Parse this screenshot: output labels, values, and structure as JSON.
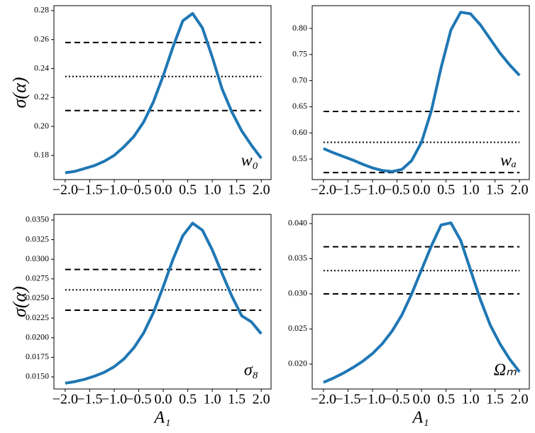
{
  "chart_data": [
    {
      "type": "line",
      "annotation": "w₀",
      "ylabel": "σ(α)",
      "color": "#1f77b4",
      "x": [
        -2.0,
        -1.8,
        -1.6,
        -1.4,
        -1.2,
        -1.0,
        -0.8,
        -0.6,
        -0.4,
        -0.2,
        0.0,
        0.2,
        0.4,
        0.6,
        0.8,
        1.0,
        1.2,
        1.4,
        1.6,
        1.8,
        2.0
      ],
      "values": [
        0.168,
        0.169,
        0.171,
        0.173,
        0.176,
        0.18,
        0.186,
        0.193,
        0.203,
        0.217,
        0.235,
        0.255,
        0.273,
        0.278,
        0.268,
        0.248,
        0.226,
        0.21,
        0.197,
        0.187,
        0.178
      ],
      "hlines": [
        {
          "value": 0.258,
          "style": "dashed"
        },
        {
          "value": 0.2345,
          "style": "dotted"
        },
        {
          "value": 0.211,
          "style": "dashed"
        }
      ],
      "xlim": [
        -2.23,
        2.2
      ],
      "ylim": [
        0.1633,
        0.2834
      ],
      "xticks": [
        {
          "value": -2,
          "label": "−2.0"
        },
        {
          "value": -1.5,
          "label": "−1.5"
        },
        {
          "value": -1,
          "label": "−1.0"
        },
        {
          "value": -0.5,
          "label": "−0.5"
        },
        {
          "value": 0,
          "label": "0.0"
        },
        0.5,
        {
          "value": 1,
          "label": "1.0"
        },
        1.5,
        {
          "value": 2,
          "label": "2.0"
        }
      ],
      "yticks": [
        0.18,
        {
          "value": 0.2,
          "label": "0.20"
        },
        0.22,
        0.24,
        0.26,
        0.28
      ]
    },
    {
      "type": "line",
      "annotation": "wₐ",
      "color": "#1f77b4",
      "x": [
        -2.0,
        -1.8,
        -1.6,
        -1.4,
        -1.2,
        -1.0,
        -0.8,
        -0.6,
        -0.4,
        -0.2,
        0.0,
        0.2,
        0.4,
        0.6,
        0.8,
        1.0,
        1.2,
        1.4,
        1.6,
        1.8,
        2.0
      ],
      "values": [
        0.57,
        0.562,
        0.555,
        0.548,
        0.54,
        0.533,
        0.528,
        0.526,
        0.53,
        0.547,
        0.582,
        0.642,
        0.725,
        0.797,
        0.831,
        0.828,
        0.807,
        0.78,
        0.753,
        0.73,
        0.71
      ],
      "hlines": [
        {
          "value": 0.641,
          "style": "dashed"
        },
        {
          "value": 0.582,
          "style": "dotted"
        },
        {
          "value": 0.524,
          "style": "dashed"
        }
      ],
      "xlim": [
        -2.23,
        2.2
      ],
      "ylim": [
        0.5106,
        0.8435
      ],
      "xticks": [
        {
          "value": -2,
          "label": "−2.0"
        },
        {
          "value": -1.5,
          "label": "−1.5"
        },
        {
          "value": -1,
          "label": "−1.0"
        },
        {
          "value": -0.5,
          "label": "−0.5"
        },
        {
          "value": 0,
          "label": "0.0"
        },
        0.5,
        {
          "value": 1,
          "label": "1.0"
        },
        1.5,
        {
          "value": 2,
          "label": "2.0"
        }
      ],
      "yticks": [
        0.55,
        {
          "value": 0.6,
          "label": "0.60"
        },
        0.65,
        {
          "value": 0.7,
          "label": "0.70"
        },
        0.75,
        {
          "value": 0.8,
          "label": "0.80"
        }
      ]
    },
    {
      "type": "line",
      "annotation": "σ₈",
      "ylabel": "σ(α)",
      "xlabel": "A₁",
      "color": "#1f77b4",
      "x": [
        -2.0,
        -1.8,
        -1.6,
        -1.4,
        -1.2,
        -1.0,
        -0.8,
        -0.6,
        -0.4,
        -0.2,
        0.0,
        0.2,
        0.4,
        0.6,
        0.8,
        1.0,
        1.2,
        1.4,
        1.6,
        1.8,
        2.0
      ],
      "values": [
        0.0142,
        0.0144,
        0.0147,
        0.0151,
        0.0156,
        0.0163,
        0.0173,
        0.0187,
        0.0206,
        0.0232,
        0.0265,
        0.03,
        0.033,
        0.0346,
        0.0337,
        0.0312,
        0.0282,
        0.0253,
        0.0228,
        0.022,
        0.0205
      ],
      "hlines": [
        {
          "value": 0.0287,
          "style": "dashed"
        },
        {
          "value": 0.0261,
          "style": "dotted"
        },
        {
          "value": 0.0235,
          "style": "dashed"
        }
      ],
      "xlim": [
        -2.23,
        2.2
      ],
      "ylim": [
        0.01346,
        0.03572
      ],
      "xticks": [
        {
          "value": -2,
          "label": "−2.0"
        },
        {
          "value": -1.5,
          "label": "−1.5"
        },
        {
          "value": -1,
          "label": "−1.0"
        },
        {
          "value": -0.5,
          "label": "−0.5"
        },
        {
          "value": 0,
          "label": "0.0"
        },
        0.5,
        {
          "value": 1,
          "label": "1.0"
        },
        1.5,
        {
          "value": 2,
          "label": "2.0"
        }
      ],
      "yticks": [
        {
          "value": 0.015,
          "label": "0.0150"
        },
        0.0175,
        {
          "value": 0.02,
          "label": "0.0200"
        },
        0.0225,
        {
          "value": 0.025,
          "label": "0.0250"
        },
        0.0275,
        {
          "value": 0.03,
          "label": "0.0300"
        },
        0.0325,
        {
          "value": 0.035,
          "label": "0.0350"
        }
      ]
    },
    {
      "type": "line",
      "annotation": "Ωₘ",
      "xlabel": "A₁",
      "color": "#1f77b4",
      "x": [
        -2.0,
        -1.8,
        -1.6,
        -1.4,
        -1.2,
        -1.0,
        -0.8,
        -0.6,
        -0.4,
        -0.2,
        0.0,
        0.2,
        0.4,
        0.6,
        0.8,
        1.0,
        1.2,
        1.4,
        1.6,
        1.8,
        2.0
      ],
      "values": [
        0.0174,
        0.018,
        0.0187,
        0.0195,
        0.0204,
        0.0215,
        0.0229,
        0.0247,
        0.027,
        0.03,
        0.0334,
        0.0368,
        0.0398,
        0.0401,
        0.0376,
        0.0334,
        0.0292,
        0.0256,
        0.0229,
        0.0207,
        0.0189
      ],
      "hlines": [
        {
          "value": 0.0367,
          "style": "dashed"
        },
        {
          "value": 0.0333,
          "style": "dotted"
        },
        {
          "value": 0.03,
          "style": "dashed"
        }
      ],
      "xlim": [
        -2.23,
        2.2
      ],
      "ylim": [
        0.01646,
        0.04131
      ],
      "xticks": [
        {
          "value": -2,
          "label": "−2.0"
        },
        {
          "value": -1.5,
          "label": "−1.5"
        },
        {
          "value": -1,
          "label": "−1.0"
        },
        {
          "value": -0.5,
          "label": "−0.5"
        },
        {
          "value": 0,
          "label": "0.0"
        },
        0.5,
        {
          "value": 1,
          "label": "1.0"
        },
        1.5,
        {
          "value": 2,
          "label": "2.0"
        }
      ],
      "yticks": [
        {
          "value": 0.02,
          "label": "0.020"
        },
        0.025,
        {
          "value": 0.03,
          "label": "0.030"
        },
        0.035,
        {
          "value": 0.04,
          "label": "0.040"
        }
      ]
    }
  ]
}
